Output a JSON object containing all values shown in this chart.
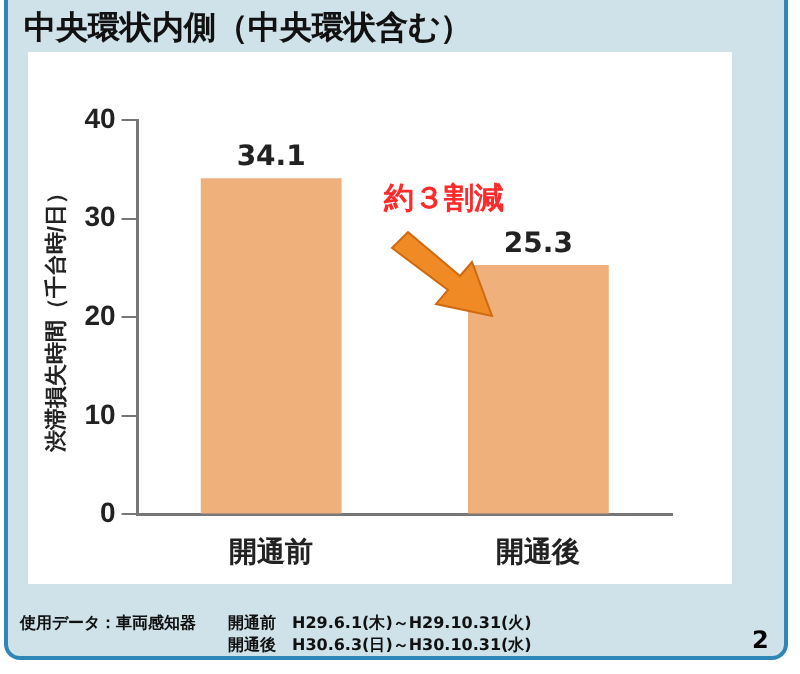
{
  "chart_data": {
    "type": "bar",
    "title": "中央環状内側（中央環状含む）",
    "ylabel": "渋滞損失時間（千台時/日）",
    "categories": [
      "開通前",
      "開通後"
    ],
    "values": [
      34.1,
      25.3
    ],
    "color": "#efb07c",
    "ylim": [
      0,
      40
    ],
    "yticks": [
      0,
      10,
      20,
      30,
      40
    ],
    "grid": false,
    "data_labels": true,
    "annotations": [
      "約３割減",
      "使用データ：車両感知器",
      "開通前　H29.6.1(木)～H29.10.31(火)",
      "開通後　H30.6.3(日)～H30.10.31(水)",
      "2"
    ]
  }
}
